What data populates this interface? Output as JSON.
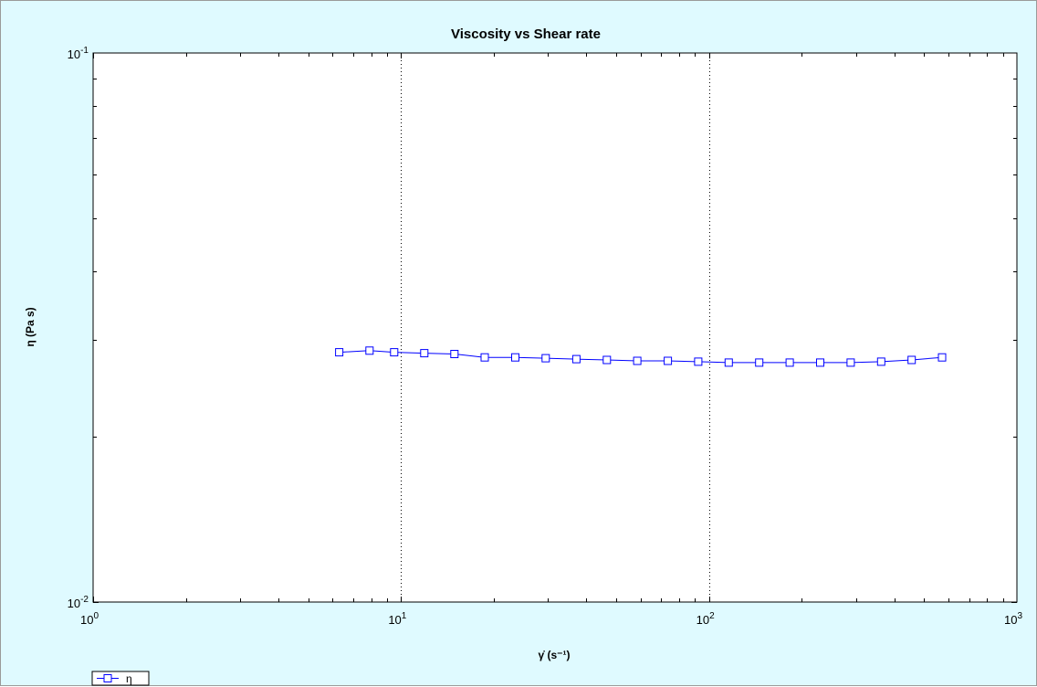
{
  "chart_data": {
    "type": "line",
    "title": "Viscosity vs Shear rate",
    "xlabel": "γ̇ (s⁻¹)",
    "ylabel": "η (Pa s)",
    "xscale": "log",
    "yscale": "log",
    "xlim": [
      1,
      1000
    ],
    "ylim": [
      0.01,
      0.1
    ],
    "x_ticks": [
      "10^0",
      "10^1",
      "10^2",
      "10^3"
    ],
    "y_ticks": [
      "10^-2",
      "10^-1"
    ],
    "grid": "vertical dotted at decades",
    "legend": {
      "position": "bottom-left",
      "entries": [
        "η"
      ]
    },
    "series": [
      {
        "name": "η",
        "color": "#0000ff",
        "marker": "open-square",
        "x": [
          6.3,
          7.9,
          9.5,
          11.9,
          14.9,
          18.7,
          23.5,
          29.5,
          37.1,
          46.6,
          58.5,
          73.5,
          92.3,
          115.9,
          145.6,
          182.9,
          229.7,
          288.5,
          362.3,
          455.1,
          571.5
        ],
        "y": [
          0.0285,
          0.0287,
          0.0285,
          0.0284,
          0.0283,
          0.0279,
          0.0279,
          0.0278,
          0.0277,
          0.0276,
          0.0275,
          0.0275,
          0.0274,
          0.0273,
          0.0273,
          0.0273,
          0.0273,
          0.0273,
          0.0274,
          0.0276,
          0.0279
        ]
      }
    ]
  }
}
